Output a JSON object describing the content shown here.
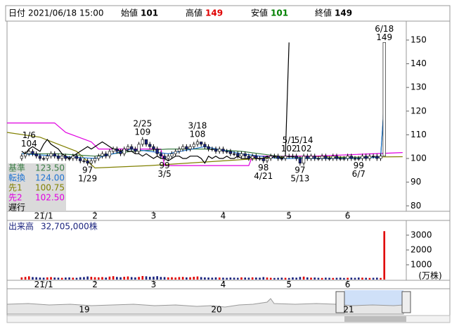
{
  "header": {
    "date_label": "日付",
    "date": "2021/06/18 15:00",
    "open_label": "始値",
    "open": 101,
    "high_label": "高値",
    "high": 149,
    "low_label": "安値",
    "low": 101,
    "close_label": "終値",
    "close": 149
  },
  "chart_data": [
    {
      "type": "candlestick",
      "xlim": [
        -4,
        105
      ],
      "ylim": [
        77.7,
        158
      ],
      "yticks": [
        80,
        90,
        100,
        110,
        120,
        130,
        140,
        150
      ],
      "xticks": [
        {
          "value": 6,
          "label": "21/1"
        },
        {
          "value": 20,
          "label": "2"
        },
        {
          "value": 36,
          "label": "3"
        },
        {
          "value": 55,
          "label": "4"
        },
        {
          "value": 73,
          "label": "5"
        },
        {
          "value": 89,
          "label": "6"
        }
      ],
      "up_color": "#ffffff",
      "down_color": "#1a237e",
      "line_color": "#000000",
      "open": [
        100,
        101,
        102,
        103,
        102,
        101,
        100,
        100,
        101,
        102,
        101,
        100,
        101,
        100,
        100,
        101,
        100,
        99,
        99,
        98,
        99,
        100,
        101,
        102,
        101,
        103,
        104,
        103,
        102,
        104,
        105,
        104,
        103,
        106,
        108,
        106,
        105,
        104,
        102,
        101,
        100,
        101,
        102,
        103,
        104,
        105,
        104,
        105,
        106,
        107,
        106,
        105,
        104,
        104,
        103,
        104,
        103,
        103,
        102,
        102,
        101,
        102,
        101,
        100,
        101,
        100,
        100,
        99,
        100,
        101,
        101,
        100,
        100,
        101,
        101,
        101,
        100,
        98,
        101,
        100,
        101,
        100,
        100,
        101,
        100,
        100,
        101,
        100,
        100,
        100,
        101,
        100,
        100,
        100,
        101,
        100,
        101,
        101,
        100,
        101
      ],
      "high": [
        102,
        103,
        104,
        104,
        103,
        102,
        101,
        102,
        103,
        103,
        102,
        102,
        102,
        101,
        102,
        102,
        101,
        100,
        100,
        100,
        101,
        102,
        103,
        103,
        104,
        105,
        105,
        104,
        105,
        106,
        106,
        105,
        107,
        109,
        108,
        107,
        106,
        105,
        103,
        102,
        102,
        103,
        104,
        105,
        106,
        106,
        106,
        107,
        108,
        107,
        107,
        106,
        105,
        105,
        105,
        105,
        104,
        104,
        103,
        103,
        103,
        103,
        102,
        102,
        102,
        101,
        101,
        101,
        102,
        102,
        102,
        101,
        102,
        102,
        102,
        102,
        101,
        102,
        102,
        102,
        102,
        101,
        102,
        102,
        101,
        102,
        102,
        101,
        101,
        102,
        102,
        101,
        101,
        102,
        102,
        102,
        102,
        102,
        102,
        149
      ],
      "low": [
        99,
        100,
        101,
        101,
        100,
        99,
        99,
        99,
        100,
        100,
        99,
        99,
        99,
        99,
        99,
        99,
        98,
        98,
        97,
        97,
        98,
        99,
        100,
        100,
        100,
        102,
        102,
        101,
        101,
        103,
        103,
        102,
        102,
        105,
        105,
        104,
        103,
        101,
        100,
        99,
        99,
        100,
        101,
        102,
        103,
        103,
        103,
        104,
        105,
        105,
        104,
        103,
        103,
        102,
        102,
        102,
        102,
        101,
        101,
        100,
        100,
        100,
        99,
        99,
        99,
        99,
        98,
        98,
        99,
        100,
        99,
        99,
        99,
        100,
        100,
        99,
        97,
        97,
        99,
        99,
        99,
        99,
        99,
        99,
        99,
        99,
        99,
        99,
        99,
        99,
        99,
        99,
        99,
        99,
        99,
        99,
        100,
        99,
        99,
        101
      ],
      "close": [
        101,
        102,
        103,
        102,
        101,
        100,
        100,
        101,
        102,
        101,
        100,
        101,
        100,
        100,
        101,
        100,
        99,
        99,
        98,
        99,
        100,
        101,
        102,
        101,
        103,
        104,
        103,
        102,
        104,
        105,
        104,
        103,
        106,
        108,
        106,
        105,
        104,
        102,
        101,
        100,
        101,
        102,
        103,
        104,
        105,
        104,
        105,
        106,
        107,
        106,
        105,
        104,
        104,
        103,
        104,
        103,
        103,
        102,
        102,
        101,
        102,
        101,
        100,
        101,
        100,
        100,
        99,
        100,
        101,
        101,
        100,
        100,
        101,
        101,
        101,
        100,
        98,
        101,
        100,
        101,
        100,
        100,
        101,
        100,
        100,
        101,
        100,
        100,
        100,
        101,
        100,
        100,
        100,
        101,
        100,
        101,
        101,
        100,
        101,
        149
      ],
      "annotations": [
        {
          "x": 2,
          "date": "1/6",
          "value": 104,
          "side": "high"
        },
        {
          "x": 18,
          "date": "1/29",
          "value": 97,
          "side": "low"
        },
        {
          "x": 33,
          "date": "2/25",
          "value": 109,
          "side": "high"
        },
        {
          "x": 39,
          "date": "3/5",
          "value": 99,
          "side": "low"
        },
        {
          "x": 48,
          "date": "3/18",
          "value": 108,
          "side": "high"
        },
        {
          "x": 66,
          "date": "4/21",
          "value": 98,
          "side": "low"
        },
        {
          "x": 73,
          "date": "5/1",
          "value": 102,
          "side": "high"
        },
        {
          "x": 76,
          "date": "5/13",
          "value": 97,
          "side": "low"
        },
        {
          "x": 77,
          "date": "5/14",
          "value": 102,
          "side": "high"
        },
        {
          "x": 92,
          "date": "6/7",
          "value": 99,
          "side": "low"
        },
        {
          "x": 99,
          "date": "6/18",
          "value": 149,
          "side": "high"
        }
      ],
      "lines": [
        {
          "name": "先1",
          "color": "#808000",
          "x": [
            -4,
            5,
            15,
            20,
            35,
            55,
            75,
            90,
            104
          ],
          "values": [
            111,
            109,
            103,
            96,
            97,
            99,
            101,
            100.5,
            100.75
          ],
          "legend_value": {
            "value": 100.75,
            "label": "100.75"
          }
        },
        {
          "name": "先2",
          "color": "#e000e0",
          "x": [
            -4,
            9,
            12,
            19,
            21,
            38,
            39,
            62,
            63,
            80,
            104
          ],
          "values": [
            115,
            115,
            111,
            107,
            104,
            104,
            97,
            97,
            101,
            101,
            102.5
          ],
          "legend_value": {
            "value": 102.5,
            "label": "102.50"
          }
        },
        {
          "name": "基準",
          "color": "#3a7d44",
          "x": [
            0,
            10,
            20,
            30,
            40,
            50,
            60,
            70,
            80,
            90,
            98,
            99
          ],
          "values": [
            102,
            102,
            101,
            103,
            104,
            104,
            103,
            101,
            100,
            100.5,
            100.5,
            123.5
          ],
          "legend_value": {
            "value": 123.5,
            "label": "123.50"
          }
        },
        {
          "name": "転換",
          "color": "#1e73d2",
          "x": [
            0,
            10,
            20,
            30,
            40,
            50,
            60,
            70,
            80,
            90,
            98,
            99
          ],
          "values": [
            102,
            101,
            100,
            104,
            102,
            105,
            102,
            100,
            100,
            100,
            100.5,
            124
          ],
          "legend_value": {
            "value": 124,
            "label": "124.00"
          }
        },
        {
          "name": "遅行",
          "color": "#000000",
          "values": [
            103,
            102,
            104,
            105,
            104,
            103,
            106,
            108,
            106,
            105,
            104,
            102,
            101,
            100,
            101,
            102,
            103,
            104,
            105,
            104,
            105,
            106,
            107,
            106,
            105,
            104,
            104,
            103,
            104,
            103,
            103,
            102,
            102,
            101,
            102,
            101,
            100,
            101,
            100,
            100,
            99,
            100,
            101,
            101,
            100,
            100,
            101,
            101,
            101,
            100,
            98,
            101,
            100,
            101,
            100,
            100,
            101,
            100,
            100,
            101,
            100,
            100,
            100,
            101,
            100,
            100,
            100,
            101,
            100,
            101,
            101,
            100,
            101,
            149,
            null,
            null,
            null,
            null,
            null,
            null,
            null,
            null,
            null,
            null,
            null,
            null,
            null,
            null,
            null,
            null,
            null,
            null,
            null,
            null,
            null,
            null,
            null,
            null,
            null,
            null
          ]
        }
      ],
      "legend_order": [
        2,
        3,
        0,
        1,
        4
      ]
    },
    {
      "type": "bar",
      "title": "出来高",
      "total": {
        "value": 32705000,
        "label": "32,705,000株"
      },
      "unit": "(万株)",
      "xlim": [
        -4,
        105
      ],
      "ylim": [
        0,
        3900
      ],
      "yticks": [
        1000,
        2000,
        3000
      ],
      "xticks": [
        {
          "value": 6,
          "label": "21/1"
        },
        {
          "value": 20,
          "label": "2"
        },
        {
          "value": 36,
          "label": "3"
        },
        {
          "value": 55,
          "label": "4"
        },
        {
          "value": 73,
          "label": "5"
        },
        {
          "value": 89,
          "label": "6"
        }
      ],
      "up_color": "#e00000",
      "down_color": "#1a237e",
      "values": [
        150,
        180,
        220,
        170,
        160,
        140,
        130,
        150,
        170,
        140,
        130,
        120,
        140,
        150,
        130,
        120,
        160,
        170,
        210,
        190,
        160,
        150,
        170,
        140,
        200,
        230,
        180,
        160,
        190,
        210,
        170,
        150,
        180,
        240,
        220,
        190,
        200,
        230,
        180,
        170,
        150,
        160,
        140,
        170,
        180,
        150,
        160,
        190,
        210,
        170,
        150,
        140,
        130,
        150,
        140,
        130,
        120,
        140,
        130,
        120,
        150,
        140,
        130,
        150,
        140,
        130,
        170,
        140,
        120,
        110,
        120,
        130,
        120,
        110,
        150,
        130,
        180,
        200,
        150,
        130,
        140,
        120,
        110,
        130,
        120,
        110,
        120,
        130,
        110,
        120,
        130,
        120,
        140,
        130,
        120,
        110,
        120,
        130,
        110,
        3270.5
      ]
    }
  ],
  "navigator": {
    "labels": [
      "19",
      "20",
      "21"
    ]
  }
}
